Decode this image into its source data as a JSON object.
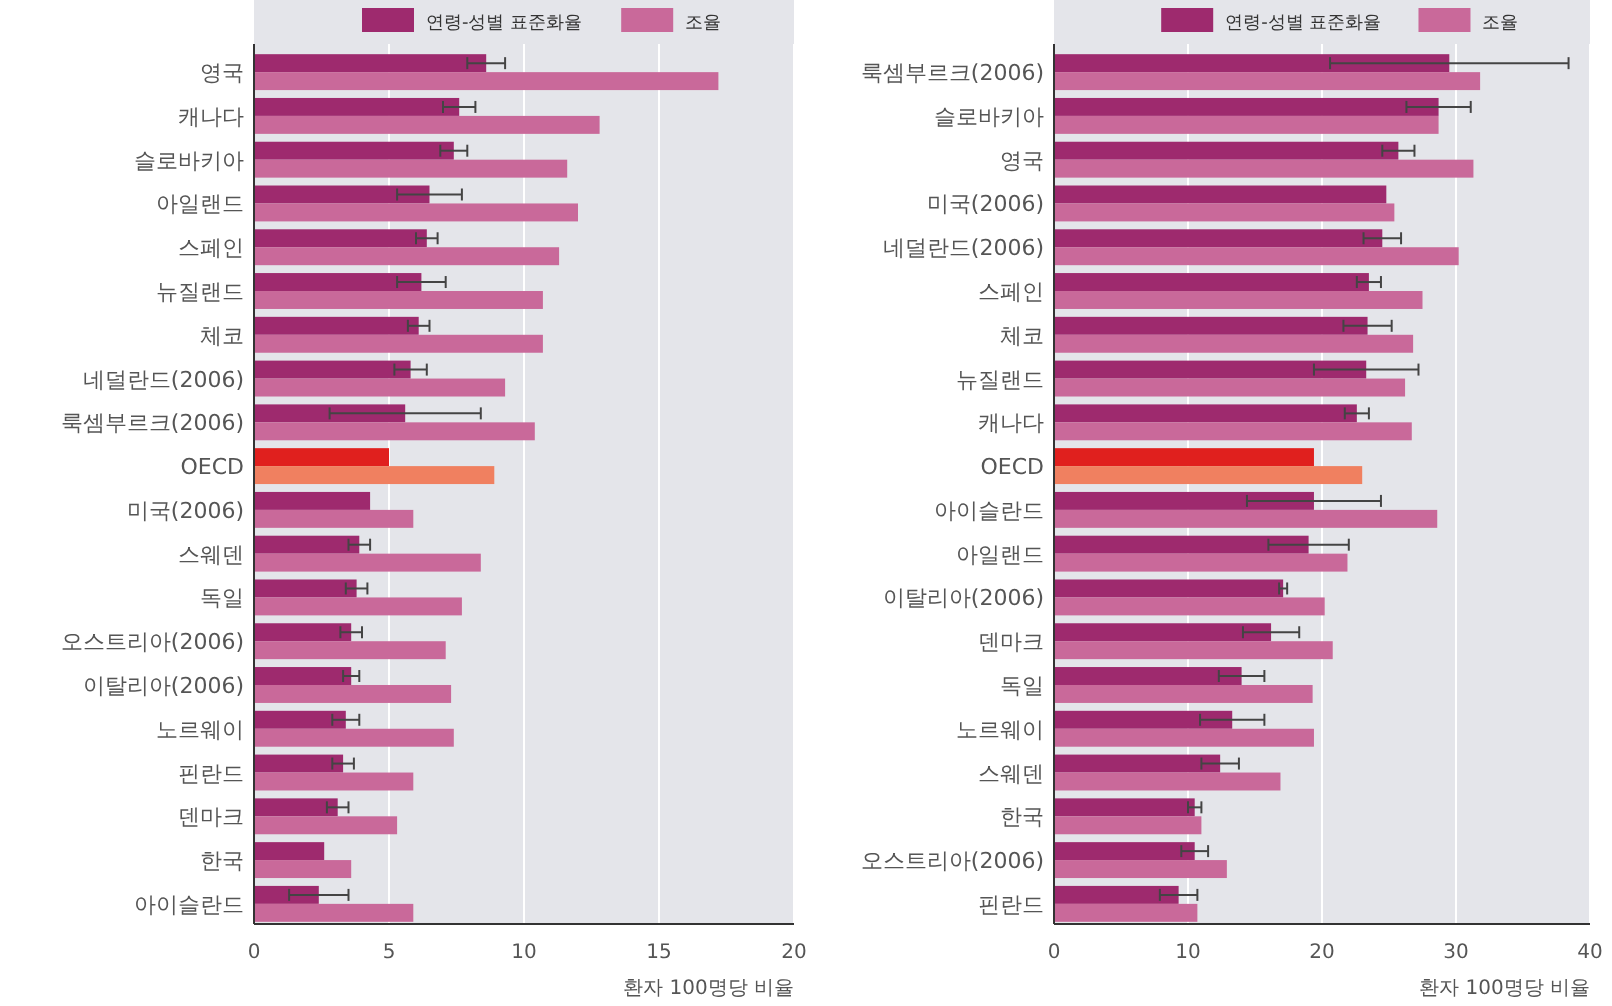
{
  "chart_data": [
    {
      "type": "bar",
      "orientation": "horizontal",
      "categories": [
        "영국",
        "캐나다",
        "슬로바키아",
        "아일랜드",
        "스페인",
        "뉴질랜드",
        "체코",
        "네덜란드(2006)",
        "룩셈부르크(2006)",
        "OECD",
        "미국(2006)",
        "스웨덴",
        "독일",
        "오스트리아(2006)",
        "이탈리아(2006)",
        "노르웨이",
        "핀란드",
        "덴마크",
        "한국",
        "아이슬란드"
      ],
      "series": [
        {
          "name": "연령-성별 표준화율",
          "color": "#9e2a6e",
          "colors": [
            "#9e2a6e",
            "#9e2a6e",
            "#9e2a6e",
            "#9e2a6e",
            "#9e2a6e",
            "#9e2a6e",
            "#9e2a6e",
            "#9e2a6e",
            "#9e2a6e",
            "#e0201e",
            "#9e2a6e",
            "#9e2a6e",
            "#9e2a6e",
            "#9e2a6e",
            "#9e2a6e",
            "#9e2a6e",
            "#9e2a6e",
            "#9e2a6e",
            "#9e2a6e",
            "#9e2a6e"
          ],
          "values": [
            8.6,
            7.6,
            7.4,
            6.5,
            6.4,
            6.2,
            6.1,
            5.8,
            5.6,
            5.0,
            4.3,
            3.9,
            3.8,
            3.6,
            3.6,
            3.4,
            3.3,
            3.1,
            2.6,
            2.4
          ],
          "errors": [
            0.7,
            0.6,
            0.5,
            1.2,
            0.4,
            0.9,
            0.4,
            0.6,
            2.8,
            null,
            null,
            0.4,
            0.4,
            0.4,
            0.3,
            0.5,
            0.4,
            0.4,
            null,
            1.1
          ]
        },
        {
          "name": "조율",
          "color": "#c9699a",
          "colors": [
            "#c9699a",
            "#c9699a",
            "#c9699a",
            "#c9699a",
            "#c9699a",
            "#c9699a",
            "#c9699a",
            "#c9699a",
            "#c9699a",
            "#f08060",
            "#c9699a",
            "#c9699a",
            "#c9699a",
            "#c9699a",
            "#c9699a",
            "#c9699a",
            "#c9699a",
            "#c9699a",
            "#c9699a",
            "#c9699a"
          ],
          "values": [
            17.2,
            12.8,
            11.6,
            12.0,
            11.3,
            10.7,
            10.7,
            9.3,
            10.4,
            8.9,
            5.9,
            8.4,
            7.7,
            7.1,
            7.3,
            7.4,
            5.9,
            5.3,
            3.6,
            5.9
          ]
        }
      ],
      "xlim": [
        0,
        20
      ],
      "xticks": [
        0,
        5,
        10,
        15,
        20
      ],
      "xlabel": "환자 100명당 비율",
      "grid": "x",
      "legend": "top"
    },
    {
      "type": "bar",
      "orientation": "horizontal",
      "categories": [
        "룩셈부르크(2006)",
        "슬로바키아",
        "영국",
        "미국(2006)",
        "네덜란드(2006)",
        "스페인",
        "체코",
        "뉴질랜드",
        "캐나다",
        "OECD",
        "아이슬란드",
        "아일랜드",
        "이탈리아(2006)",
        "덴마크",
        "독일",
        "노르웨이",
        "스웨덴",
        "한국",
        "오스트리아(2006)",
        "핀란드"
      ],
      "series": [
        {
          "name": "연령-성별 표준화율",
          "color": "#9e2a6e",
          "colors": [
            "#9e2a6e",
            "#9e2a6e",
            "#9e2a6e",
            "#9e2a6e",
            "#9e2a6e",
            "#9e2a6e",
            "#9e2a6e",
            "#9e2a6e",
            "#9e2a6e",
            "#e0201e",
            "#9e2a6e",
            "#9e2a6e",
            "#9e2a6e",
            "#9e2a6e",
            "#9e2a6e",
            "#9e2a6e",
            "#9e2a6e",
            "#9e2a6e",
            "#9e2a6e",
            "#9e2a6e"
          ],
          "values": [
            29.5,
            28.7,
            25.7,
            24.8,
            24.5,
            23.5,
            23.4,
            23.3,
            22.6,
            19.4,
            19.4,
            19.0,
            17.1,
            16.2,
            14.0,
            13.3,
            12.4,
            10.5,
            10.5,
            9.3
          ],
          "errors": [
            8.9,
            2.4,
            1.2,
            null,
            1.4,
            0.9,
            1.8,
            3.9,
            0.9,
            null,
            5.0,
            3.0,
            0.3,
            2.1,
            1.7,
            2.4,
            1.4,
            0.5,
            1.0,
            1.4
          ]
        },
        {
          "name": "조율",
          "color": "#c9699a",
          "colors": [
            "#c9699a",
            "#c9699a",
            "#c9699a",
            "#c9699a",
            "#c9699a",
            "#c9699a",
            "#c9699a",
            "#c9699a",
            "#c9699a",
            "#f08060",
            "#c9699a",
            "#c9699a",
            "#c9699a",
            "#c9699a",
            "#c9699a",
            "#c9699a",
            "#c9699a",
            "#c9699a",
            "#c9699a",
            "#c9699a"
          ],
          "values": [
            31.8,
            28.7,
            31.3,
            25.4,
            30.2,
            27.5,
            26.8,
            26.2,
            26.7,
            23.0,
            28.6,
            21.9,
            20.2,
            20.8,
            19.3,
            19.4,
            16.9,
            11.0,
            12.9,
            10.7
          ]
        }
      ],
      "xlim": [
        0,
        40
      ],
      "xticks": [
        0,
        10,
        20,
        30,
        40
      ],
      "xlabel": "환자 100명당 비율",
      "grid": "x",
      "legend": "top"
    }
  ]
}
